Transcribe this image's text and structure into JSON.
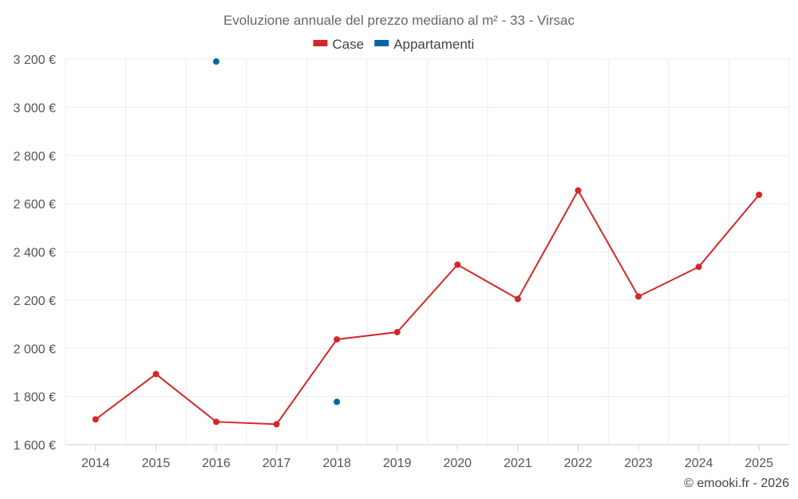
{
  "chart_data": {
    "type": "line",
    "title": "Evoluzione annuale del prezzo mediano al m² - 33 - Virsac",
    "categories": [
      "2014",
      "2015",
      "2016",
      "2017",
      "2018",
      "2019",
      "2020",
      "2021",
      "2022",
      "2023",
      "2024",
      "2025"
    ],
    "y_tick_labels": [
      "1 600 €",
      "1 800 €",
      "2 000 €",
      "2 200 €",
      "2 400 €",
      "2 600 €",
      "2 800 €",
      "3 000 €",
      "3 200 €"
    ],
    "y_ticks": [
      1600,
      1800,
      2000,
      2200,
      2400,
      2600,
      2800,
      3000,
      3200
    ],
    "ylim": [
      1600,
      3200
    ],
    "grid": true,
    "legend_position": "top-center",
    "series": [
      {
        "name": "Case",
        "color": "#d62728",
        "values": [
          1705,
          1893,
          1695,
          1685,
          2037,
          2067,
          2347,
          2205,
          2655,
          2215,
          2338,
          2637
        ]
      },
      {
        "name": "Appartamenti",
        "color": "#0066a1",
        "values": [
          null,
          null,
          3190,
          null,
          1778,
          null,
          null,
          null,
          null,
          null,
          null,
          null
        ]
      }
    ],
    "credit": "© emooki.fr - 2026"
  }
}
